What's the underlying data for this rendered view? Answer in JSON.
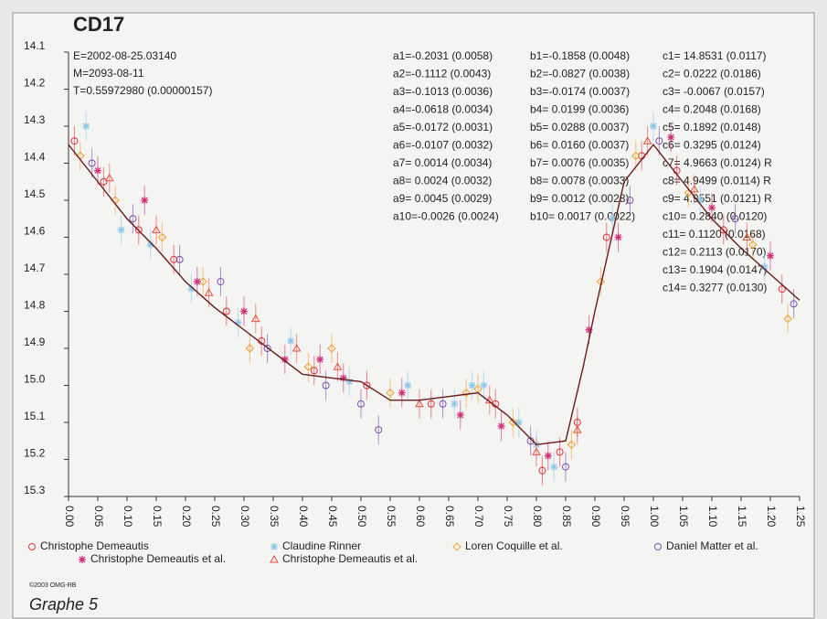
{
  "chart_data": {
    "type": "scatter",
    "title": "CD17",
    "annotations": [
      "E=2002-08-25.03140",
      "M=2093-08-11",
      "T=0.55972980 (0.00000157)"
    ],
    "coefficients": [
      [
        "a1=-0.2031 (0.0058)",
        "a2=-0.1112 (0.0043)",
        "a3=-0.1013 (0.0036)",
        "a4=-0.0618 (0.0034)",
        "a5=-0.0172 (0.0031)",
        "a6=-0.0107 (0.0032)",
        "a7= 0.0014 (0.0034)",
        "a8= 0.0024 (0.0032)",
        "a9= 0.0045 (0.0029)",
        "a10=-0.0026 (0.0024)"
      ],
      [
        "b1=-0.1858 (0.0048)",
        "b2=-0.0827 (0.0038)",
        "b3=-0.0174 (0.0037)",
        "b4= 0.0199 (0.0036)",
        "b5= 0.0288 (0.0037)",
        "b6= 0.0160 (0.0037)",
        "b7= 0.0076 (0.0035)",
        "b8= 0.0078 (0.0033)",
        "b9= 0.0012 (0.0028)",
        "b10= 0.0017 (0.0022)"
      ],
      [
        "c1= 14.8531 (0.0117)",
        "c2= 0.0222 (0.0186)",
        "c3= -0.0067 (0.0157)",
        "c4= 0.2048 (0.0168)",
        "c5= 0.1892 (0.0148)",
        "c6= 0.3295 (0.0124)",
        "c7= 4.9663 (0.0124) R",
        "c8= 4.9499 (0.0114) R",
        "c9= 4.9551 (0.0121) R",
        "c10= 0.2840 (0.0120)",
        "c11= 0.1120 (0.0168)",
        "c12= 0.2113 (0.0170)",
        "c13= 0.1904 (0.0147)",
        "c14= 0.3277 (0.0130)"
      ]
    ],
    "xlim": [
      0,
      1.25
    ],
    "ylim": [
      14.1,
      15.3
    ],
    "y_inverted": true,
    "xticks": [
      {
        "value": 0,
        "label": "0.00"
      },
      {
        "value": 0.05,
        "label": "0.05"
      },
      {
        "value": 0.1,
        "label": "0.10"
      },
      {
        "value": 0.15,
        "label": "0.15"
      },
      {
        "value": 0.2,
        "label": "0.20"
      },
      {
        "value": 0.25,
        "label": "0.25"
      },
      {
        "value": 0.3,
        "label": "0.30"
      },
      {
        "value": 0.35,
        "label": "0.35"
      },
      {
        "value": 0.4,
        "label": "0.40"
      },
      {
        "value": 0.45,
        "label": "0.45"
      },
      {
        "value": 0.5,
        "label": "0.50"
      },
      {
        "value": 0.55,
        "label": "0.55"
      },
      {
        "value": 0.6,
        "label": "0.60"
      },
      {
        "value": 0.65,
        "label": "0.65"
      },
      {
        "value": 0.7,
        "label": "0.70"
      },
      {
        "value": 0.75,
        "label": "0.75"
      },
      {
        "value": 0.8,
        "label": "0.80"
      },
      {
        "value": 0.85,
        "label": "0.85"
      },
      {
        "value": 0.9,
        "label": "0.90"
      },
      {
        "value": 0.95,
        "label": "0.95"
      },
      {
        "value": 1,
        "label": "1.00"
      },
      {
        "value": 1.05,
        "label": "1.05"
      },
      {
        "value": 1.1,
        "label": "1.10"
      },
      {
        "value": 1.15,
        "label": "1.15"
      },
      {
        "value": 1.2,
        "label": "1.20"
      },
      {
        "value": 1.25,
        "label": "1.25"
      }
    ],
    "yticks": [
      14.1,
      14.2,
      14.3,
      14.4,
      14.5,
      14.6,
      14.7,
      14.8,
      14.9,
      {
        "value": 15,
        "label": "15.0"
      },
      15.1,
      15.2,
      15.3
    ],
    "series": [
      {
        "name": "Christophe Demeautis",
        "color": "#e0303a",
        "marker": "circle",
        "x": [
          0.01,
          0.06,
          0.12,
          0.18,
          0.27,
          0.33,
          0.42,
          0.51,
          0.62,
          0.73,
          0.81,
          0.84,
          0.87,
          0.92,
          0.98,
          1.04,
          1.12,
          1.22
        ],
        "values": [
          14.34,
          14.45,
          14.58,
          14.66,
          14.8,
          14.88,
          14.96,
          15.0,
          15.05,
          15.05,
          15.23,
          15.18,
          15.1,
          14.6,
          14.38,
          14.42,
          14.58,
          14.74
        ]
      },
      {
        "name": "Claudine Rinner",
        "color": "#8ec8e8",
        "marker": "star",
        "x": [
          0.03,
          0.09,
          0.14,
          0.21,
          0.29,
          0.38,
          0.48,
          0.58,
          0.66,
          0.69,
          0.71,
          0.77,
          0.8,
          0.83,
          0.93,
          1.0,
          1.08,
          1.19
        ],
        "values": [
          14.3,
          14.58,
          14.62,
          14.74,
          14.83,
          14.88,
          14.99,
          15.0,
          15.05,
          15.0,
          15.0,
          15.1,
          15.16,
          15.22,
          14.55,
          14.3,
          14.5,
          14.68
        ]
      },
      {
        "name": "Loren Coquille et al.",
        "color": "#f0a030",
        "marker": "diamond",
        "x": [
          0.02,
          0.08,
          0.16,
          0.23,
          0.31,
          0.41,
          0.45,
          0.55,
          0.68,
          0.7,
          0.76,
          0.86,
          0.91,
          0.97,
          1.06,
          1.17,
          1.23
        ],
        "values": [
          14.38,
          14.5,
          14.6,
          14.72,
          14.9,
          14.95,
          14.9,
          15.02,
          15.02,
          15.01,
          15.1,
          15.16,
          14.72,
          14.38,
          14.48,
          14.62,
          14.82
        ]
      },
      {
        "name": "Daniel Matter et al.",
        "color": "#7a4fb0",
        "marker": "circle",
        "x": [
          0.04,
          0.11,
          0.19,
          0.26,
          0.34,
          0.44,
          0.5,
          0.53,
          0.64,
          0.79,
          0.85,
          0.96,
          1.01,
          1.14,
          1.24
        ],
        "values": [
          14.4,
          14.55,
          14.66,
          14.72,
          14.9,
          15.0,
          15.05,
          15.12,
          15.05,
          15.15,
          15.22,
          14.5,
          14.34,
          14.55,
          14.78
        ]
      },
      {
        "name": "Christophe Demeautis et al.",
        "color": "#d0307a",
        "marker": "star",
        "x": [
          0.05,
          0.13,
          0.22,
          0.3,
          0.37,
          0.43,
          0.47,
          0.57,
          0.67,
          0.74,
          0.82,
          0.89,
          0.94,
          1.03,
          1.1,
          1.2
        ],
        "values": [
          14.42,
          14.5,
          14.72,
          14.8,
          14.93,
          14.93,
          14.98,
          15.02,
          15.08,
          15.11,
          15.19,
          14.85,
          14.6,
          14.33,
          14.52,
          14.65
        ]
      },
      {
        "name": "Christophe Demeautis et al.",
        "color": "#e8503a",
        "marker": "triangle",
        "x": [
          0.07,
          0.15,
          0.24,
          0.32,
          0.39,
          0.46,
          0.6,
          0.72,
          0.8,
          0.87,
          0.99,
          1.07,
          1.16
        ],
        "values": [
          14.44,
          14.58,
          14.75,
          14.82,
          14.9,
          14.95,
          15.05,
          15.04,
          15.18,
          15.12,
          14.34,
          14.47,
          14.6
        ]
      }
    ],
    "fit": {
      "color": "#6a1a1a",
      "x": [
        0,
        0.05,
        0.1,
        0.15,
        0.2,
        0.25,
        0.3,
        0.35,
        0.4,
        0.45,
        0.5,
        0.55,
        0.6,
        0.65,
        0.7,
        0.75,
        0.8,
        0.85,
        0.88,
        0.9,
        0.95,
        1.0,
        1.05,
        1.1,
        1.15,
        1.2,
        1.25
      ],
      "values": [
        14.35,
        14.45,
        14.55,
        14.63,
        14.72,
        14.79,
        14.85,
        14.91,
        14.97,
        14.98,
        14.99,
        15.04,
        15.04,
        15.03,
        15.02,
        15.08,
        15.16,
        15.15,
        14.95,
        14.8,
        14.45,
        14.35,
        14.45,
        14.55,
        14.63,
        14.7,
        14.77
      ]
    }
  },
  "copyright": "©2003 OMG-RB",
  "caption": "Graphe 5"
}
